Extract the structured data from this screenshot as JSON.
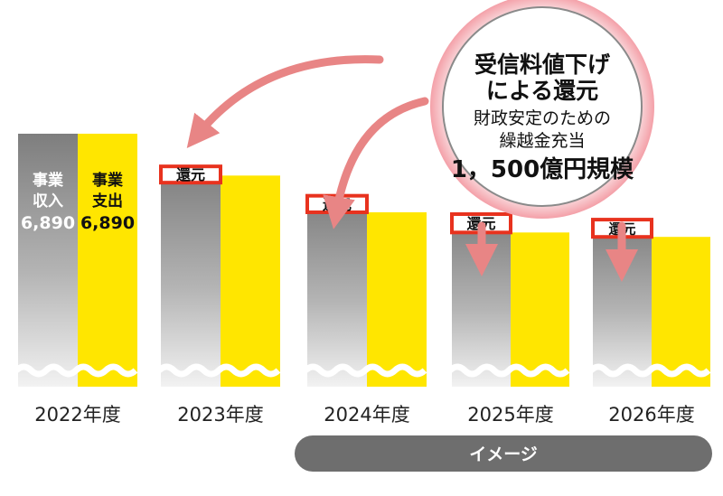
{
  "chart_data": {
    "type": "bar",
    "categories": [
      "2022年度",
      "2023年度",
      "2024年度",
      "2025年度",
      "2026年度"
    ],
    "series": [
      {
        "name": "事業収入",
        "values": [
          6890,
          6000,
          5200,
          4700,
          4550
        ]
      },
      {
        "name": "事業支出",
        "values": [
          6890,
          5750,
          4750,
          4200,
          4080
        ]
      }
    ],
    "refund_label": "還元",
    "first_bar_labels": {
      "income": {
        "line1": "事業",
        "line2": "収入",
        "value": "6,890"
      },
      "expense": {
        "line1": "事業",
        "line2": "支出",
        "value": "6,890"
      }
    },
    "callout": {
      "lines": [
        "受信料値下げ",
        "による還元",
        "財政安定のための",
        "繰越金充当",
        "1，500億円規模"
      ]
    },
    "badge": "イメージ",
    "colors": {
      "income": "#8a8a8a",
      "expense": "#ffe600",
      "refund_border": "#e8321e",
      "arrow": "#e88585",
      "callout_glow": "#f4a0a8",
      "badge": "#6e6e6e"
    }
  }
}
